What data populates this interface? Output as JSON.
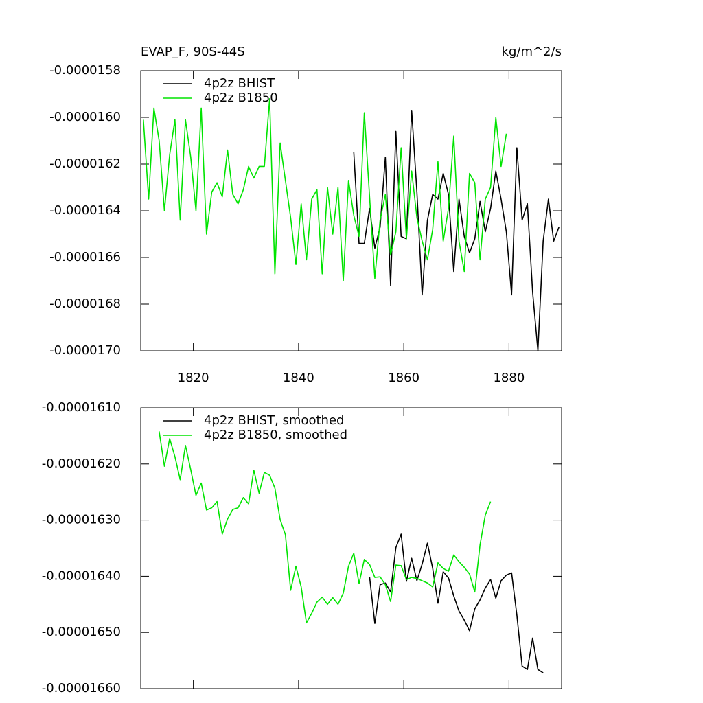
{
  "chart_data": [
    {
      "type": "line",
      "title": "EVAP_F, 90S-44S",
      "units_label": "kg/m^2/s",
      "xlim": [
        1810,
        1890
      ],
      "xticks": [
        1820,
        1840,
        1860,
        1880
      ],
      "xtick_labels": true,
      "ylim": [
        -1.7e-05,
        -1.58e-05
      ],
      "yticks": [
        {
          "value": -1.58e-05,
          "label": "-0.0000158"
        },
        {
          "value": -1.6e-05,
          "label": "-0.0000160"
        },
        {
          "value": -1.62e-05,
          "label": "-0.0000162"
        },
        {
          "value": -1.64e-05,
          "label": "-0.0000164"
        },
        {
          "value": -1.66e-05,
          "label": "-0.0000166"
        },
        {
          "value": -1.68e-05,
          "label": "-0.0000168"
        },
        {
          "value": -1.7e-05,
          "label": "-0.0000170"
        }
      ],
      "legend_loc": "upper left",
      "series": [
        {
          "name": "4p2z BHIST",
          "color": "#000000",
          "x": [
            1850.5,
            1851.5,
            1852.5,
            1853.5,
            1854.5,
            1855.5,
            1856.5,
            1857.5,
            1858.5,
            1859.5,
            1860.5,
            1861.5,
            1862.5,
            1863.5,
            1864.5,
            1865.5,
            1866.5,
            1867.5,
            1868.5,
            1869.5,
            1870.5,
            1871.5,
            1872.5,
            1873.5,
            1874.5,
            1875.5,
            1876.5,
            1877.5,
            1878.5,
            1879.5,
            1880.5,
            1881.5,
            1882.5,
            1883.5,
            1884.5,
            1885.5,
            1886.5,
            1887.5,
            1888.5,
            1889.5
          ],
          "values": [
            -1.615e-05,
            -1.654e-05,
            -1.654e-05,
            -1.639e-05,
            -1.656e-05,
            -1.647e-05,
            -1.617e-05,
            -1.672e-05,
            -1.606e-05,
            -1.651e-05,
            -1.652e-05,
            -1.597e-05,
            -1.632e-05,
            -1.676e-05,
            -1.644e-05,
            -1.633e-05,
            -1.635e-05,
            -1.624e-05,
            -1.633e-05,
            -1.666e-05,
            -1.635e-05,
            -1.651e-05,
            -1.658e-05,
            -1.652e-05,
            -1.636e-05,
            -1.649e-05,
            -1.639e-05,
            -1.623e-05,
            -1.635e-05,
            -1.649e-05,
            -1.676e-05,
            -1.613e-05,
            -1.644e-05,
            -1.637e-05,
            -1.675e-05,
            -1.7e-05,
            -1.653e-05,
            -1.635e-05,
            -1.653e-05,
            -1.647e-05
          ]
        },
        {
          "name": "4p2z B1850",
          "color": "#00e400",
          "x": [
            1810.5,
            1811.5,
            1812.5,
            1813.5,
            1814.5,
            1815.5,
            1816.5,
            1817.5,
            1818.5,
            1819.5,
            1820.5,
            1821.5,
            1822.5,
            1823.5,
            1824.5,
            1825.5,
            1826.5,
            1827.5,
            1828.5,
            1829.5,
            1830.5,
            1831.5,
            1832.5,
            1833.5,
            1834.5,
            1835.5,
            1836.5,
            1837.5,
            1838.5,
            1839.5,
            1840.5,
            1841.5,
            1842.5,
            1843.5,
            1844.5,
            1845.5,
            1846.5,
            1847.5,
            1848.5,
            1849.5,
            1850.5,
            1851.5,
            1852.5,
            1853.5,
            1854.5,
            1855.5,
            1856.5,
            1857.5,
            1858.5,
            1859.5,
            1860.5,
            1861.5,
            1862.5,
            1863.5,
            1864.5,
            1865.5,
            1866.5,
            1867.5,
            1868.5,
            1869.5,
            1870.5,
            1871.5,
            1872.5,
            1873.5,
            1874.5,
            1875.5,
            1876.5,
            1877.5,
            1878.5,
            1879.5
          ],
          "values": [
            -1.601e-05,
            -1.635e-05,
            -1.596e-05,
            -1.61e-05,
            -1.64e-05,
            -1.616e-05,
            -1.601e-05,
            -1.644e-05,
            -1.601e-05,
            -1.617e-05,
            -1.64e-05,
            -1.596e-05,
            -1.65e-05,
            -1.632e-05,
            -1.628e-05,
            -1.634e-05,
            -1.614e-05,
            -1.633e-05,
            -1.637e-05,
            -1.631e-05,
            -1.621e-05,
            -1.626e-05,
            -1.621e-05,
            -1.621e-05,
            -1.592e-05,
            -1.667e-05,
            -1.611e-05,
            -1.627e-05,
            -1.643e-05,
            -1.663e-05,
            -1.637e-05,
            -1.661e-05,
            -1.635e-05,
            -1.631e-05,
            -1.667e-05,
            -1.63e-05,
            -1.65e-05,
            -1.63e-05,
            -1.67e-05,
            -1.627e-05,
            -1.642e-05,
            -1.651e-05,
            -1.598e-05,
            -1.634e-05,
            -1.669e-05,
            -1.644e-05,
            -1.633e-05,
            -1.659e-05,
            -1.649e-05,
            -1.613e-05,
            -1.652e-05,
            -1.623e-05,
            -1.643e-05,
            -1.653e-05,
            -1.661e-05,
            -1.648e-05,
            -1.619e-05,
            -1.653e-05,
            -1.639e-05,
            -1.608e-05,
            -1.653e-05,
            -1.666e-05,
            -1.624e-05,
            -1.628e-05,
            -1.661e-05,
            -1.635e-05,
            -1.63e-05,
            -1.6e-05,
            -1.621e-05,
            -1.607e-05
          ]
        }
      ]
    },
    {
      "type": "line",
      "xlim": [
        1810,
        1890
      ],
      "xticks": [
        1820,
        1840,
        1860,
        1880
      ],
      "xtick_labels": false,
      "ylim": [
        -1.66e-05,
        -1.61e-05
      ],
      "yticks": [
        {
          "value": -1.61e-05,
          "label": "-0.00001610"
        },
        {
          "value": -1.62e-05,
          "label": "-0.00001620"
        },
        {
          "value": -1.63e-05,
          "label": "-0.00001630"
        },
        {
          "value": -1.64e-05,
          "label": "-0.00001640"
        },
        {
          "value": -1.65e-05,
          "label": "-0.00001650"
        },
        {
          "value": -1.66e-05,
          "label": "-0.00001660"
        }
      ],
      "legend_loc": "upper left",
      "series": [
        {
          "name": "4p2z BHIST, smoothed",
          "color": "#000000",
          "x": [
            1853.5,
            1854.5,
            1855.5,
            1856.5,
            1857.5,
            1858.5,
            1859.5,
            1860.5,
            1861.5,
            1862.5,
            1863.5,
            1864.5,
            1865.5,
            1866.5,
            1867.5,
            1868.5,
            1869.5,
            1870.5,
            1871.5,
            1872.5,
            1873.5,
            1874.5,
            1875.5,
            1876.5,
            1877.5,
            1878.5,
            1879.5,
            1880.5,
            1881.5,
            1882.5,
            1883.5,
            1884.5,
            1885.5,
            1886.5
          ],
          "values": [
            -1.6401e-05,
            -1.6484e-05,
            -1.6415e-05,
            -1.6412e-05,
            -1.6428e-05,
            -1.6349e-05,
            -1.6325e-05,
            -1.6409e-05,
            -1.6368e-05,
            -1.6408e-05,
            -1.6378e-05,
            -1.6341e-05,
            -1.6386e-05,
            -1.6448e-05,
            -1.6392e-05,
            -1.6403e-05,
            -1.6435e-05,
            -1.6462e-05,
            -1.6478e-05,
            -1.6497e-05,
            -1.6458e-05,
            -1.6442e-05,
            -1.6421e-05,
            -1.6406e-05,
            -1.6439e-05,
            -1.6408e-05,
            -1.6398e-05,
            -1.6394e-05,
            -1.6469e-05,
            -1.656e-05,
            -1.6566e-05,
            -1.651e-05,
            -1.6566e-05,
            -1.6572e-05
          ]
        },
        {
          "name": "4p2z B1850, smoothed",
          "color": "#00e400",
          "x": [
            1813.5,
            1814.5,
            1815.5,
            1816.5,
            1817.5,
            1818.5,
            1819.5,
            1820.5,
            1821.5,
            1822.5,
            1823.5,
            1824.5,
            1825.5,
            1826.5,
            1827.5,
            1828.5,
            1829.5,
            1830.5,
            1831.5,
            1832.5,
            1833.5,
            1834.5,
            1835.5,
            1836.5,
            1837.5,
            1838.5,
            1839.5,
            1840.5,
            1841.5,
            1842.5,
            1843.5,
            1844.5,
            1845.5,
            1846.5,
            1847.5,
            1848.5,
            1849.5,
            1850.5,
            1851.5,
            1852.5,
            1853.5,
            1854.5,
            1855.5,
            1856.5,
            1857.5,
            1858.5,
            1859.5,
            1860.5,
            1861.5,
            1862.5,
            1863.5,
            1864.5,
            1865.5,
            1866.5,
            1867.5,
            1868.5,
            1869.5,
            1870.5,
            1871.5,
            1872.5,
            1873.5,
            1874.5,
            1875.5,
            1876.5
          ],
          "values": [
            -1.6142e-05,
            -1.6204e-05,
            -1.6155e-05,
            -1.6187e-05,
            -1.6228e-05,
            -1.6167e-05,
            -1.621e-05,
            -1.6256e-05,
            -1.6234e-05,
            -1.6282e-05,
            -1.6278e-05,
            -1.6267e-05,
            -1.6325e-05,
            -1.6298e-05,
            -1.6281e-05,
            -1.6278e-05,
            -1.626e-05,
            -1.6271e-05,
            -1.6211e-05,
            -1.6252e-05,
            -1.6215e-05,
            -1.622e-05,
            -1.6243e-05,
            -1.6299e-05,
            -1.6326e-05,
            -1.6425e-05,
            -1.6382e-05,
            -1.6419e-05,
            -1.6483e-05,
            -1.6466e-05,
            -1.6446e-05,
            -1.6437e-05,
            -1.645e-05,
            -1.6438e-05,
            -1.645e-05,
            -1.643e-05,
            -1.6382e-05,
            -1.6359e-05,
            -1.6413e-05,
            -1.637e-05,
            -1.6379e-05,
            -1.6402e-05,
            -1.6401e-05,
            -1.6415e-05,
            -1.6445e-05,
            -1.638e-05,
            -1.6381e-05,
            -1.6406e-05,
            -1.6402e-05,
            -1.6404e-05,
            -1.6408e-05,
            -1.6412e-05,
            -1.6419e-05,
            -1.6376e-05,
            -1.6386e-05,
            -1.6391e-05,
            -1.6362e-05,
            -1.6374e-05,
            -1.6384e-05,
            -1.6396e-05,
            -1.6428e-05,
            -1.6344e-05,
            -1.6291e-05,
            -1.6267e-05
          ]
        }
      ]
    }
  ]
}
